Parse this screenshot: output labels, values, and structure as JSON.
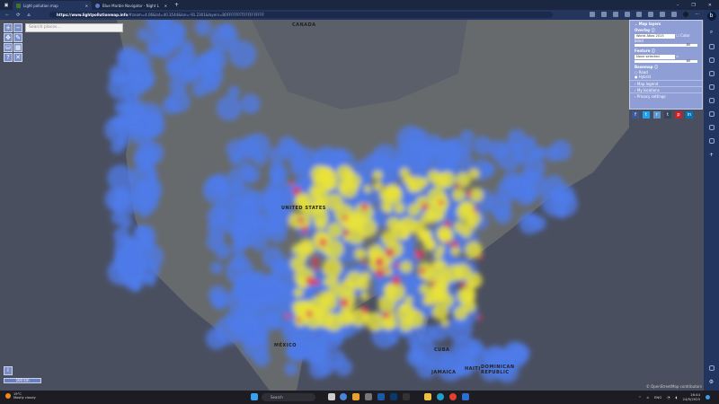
{
  "browser": {
    "tabs": [
      {
        "title": "Light pollution map",
        "active": true
      },
      {
        "title": "Blue Marble Navigator - Night L",
        "active": false
      }
    ],
    "new_tab": "+",
    "url_domain": "https://www.lightpollutionmap.info",
    "url_rest": "/#zoom=4.06&lat=40.3544&lon=-91.2301&layers=B0FFFFFFFTFFFFFFFFFF",
    "window_controls": [
      "–",
      "❐",
      "✕"
    ]
  },
  "map": {
    "search_placeholder": "Search places...",
    "controls": [
      "+",
      "−",
      "✥",
      "✎",
      "⛁",
      "▦",
      "?",
      "✕"
    ],
    "labels": {
      "canada": "CANADA",
      "us": "UNITED STATES",
      "mexico": "MÉXICO",
      "cuba": "CUBA",
      "jamaica": "JAMAICA",
      "haiti": "HAITI",
      "dominican": "DOMINICAN REPUBLIC"
    },
    "info_button": "i",
    "scale": "500 km",
    "attribution": "© OpenStreetMap contributors"
  },
  "panel": {
    "title": "Map layers",
    "overlay_label": "Overlay",
    "overlay_value": "World Atlas 2015",
    "color_blind_label": "Color blind",
    "overlay_opacity": "80",
    "feature_label": "Feature",
    "feature_value": "None selected",
    "feature_opacity": "80",
    "basemap_label": "Basemap",
    "basemap_options": [
      "Road",
      "Hybrid"
    ],
    "basemap_selected": "Hybrid",
    "sections": [
      "Map legend",
      "My locations",
      "Privacy settings"
    ],
    "social": [
      {
        "label": "f",
        "color": "#3b5998"
      },
      {
        "label": "t",
        "color": "#1da1f2"
      },
      {
        "label": "r",
        "color": "#5f99cf"
      },
      {
        "label": "t",
        "color": "#35465c"
      },
      {
        "label": "p",
        "color": "#cb2027"
      },
      {
        "label": "in",
        "color": "#0077b5"
      }
    ]
  },
  "taskbar": {
    "weather_temp": "19°C",
    "weather_desc": "Mostly cloudy",
    "search": "Search",
    "lang": "ENG",
    "time": "16:44",
    "date": "24/5/2025"
  },
  "colors": {
    "map_bg": "#4a4f60",
    "panel": "#8f9fd6",
    "blue": "#4f7be8",
    "yellow": "#e8e23a",
    "red": "#e0385a"
  }
}
